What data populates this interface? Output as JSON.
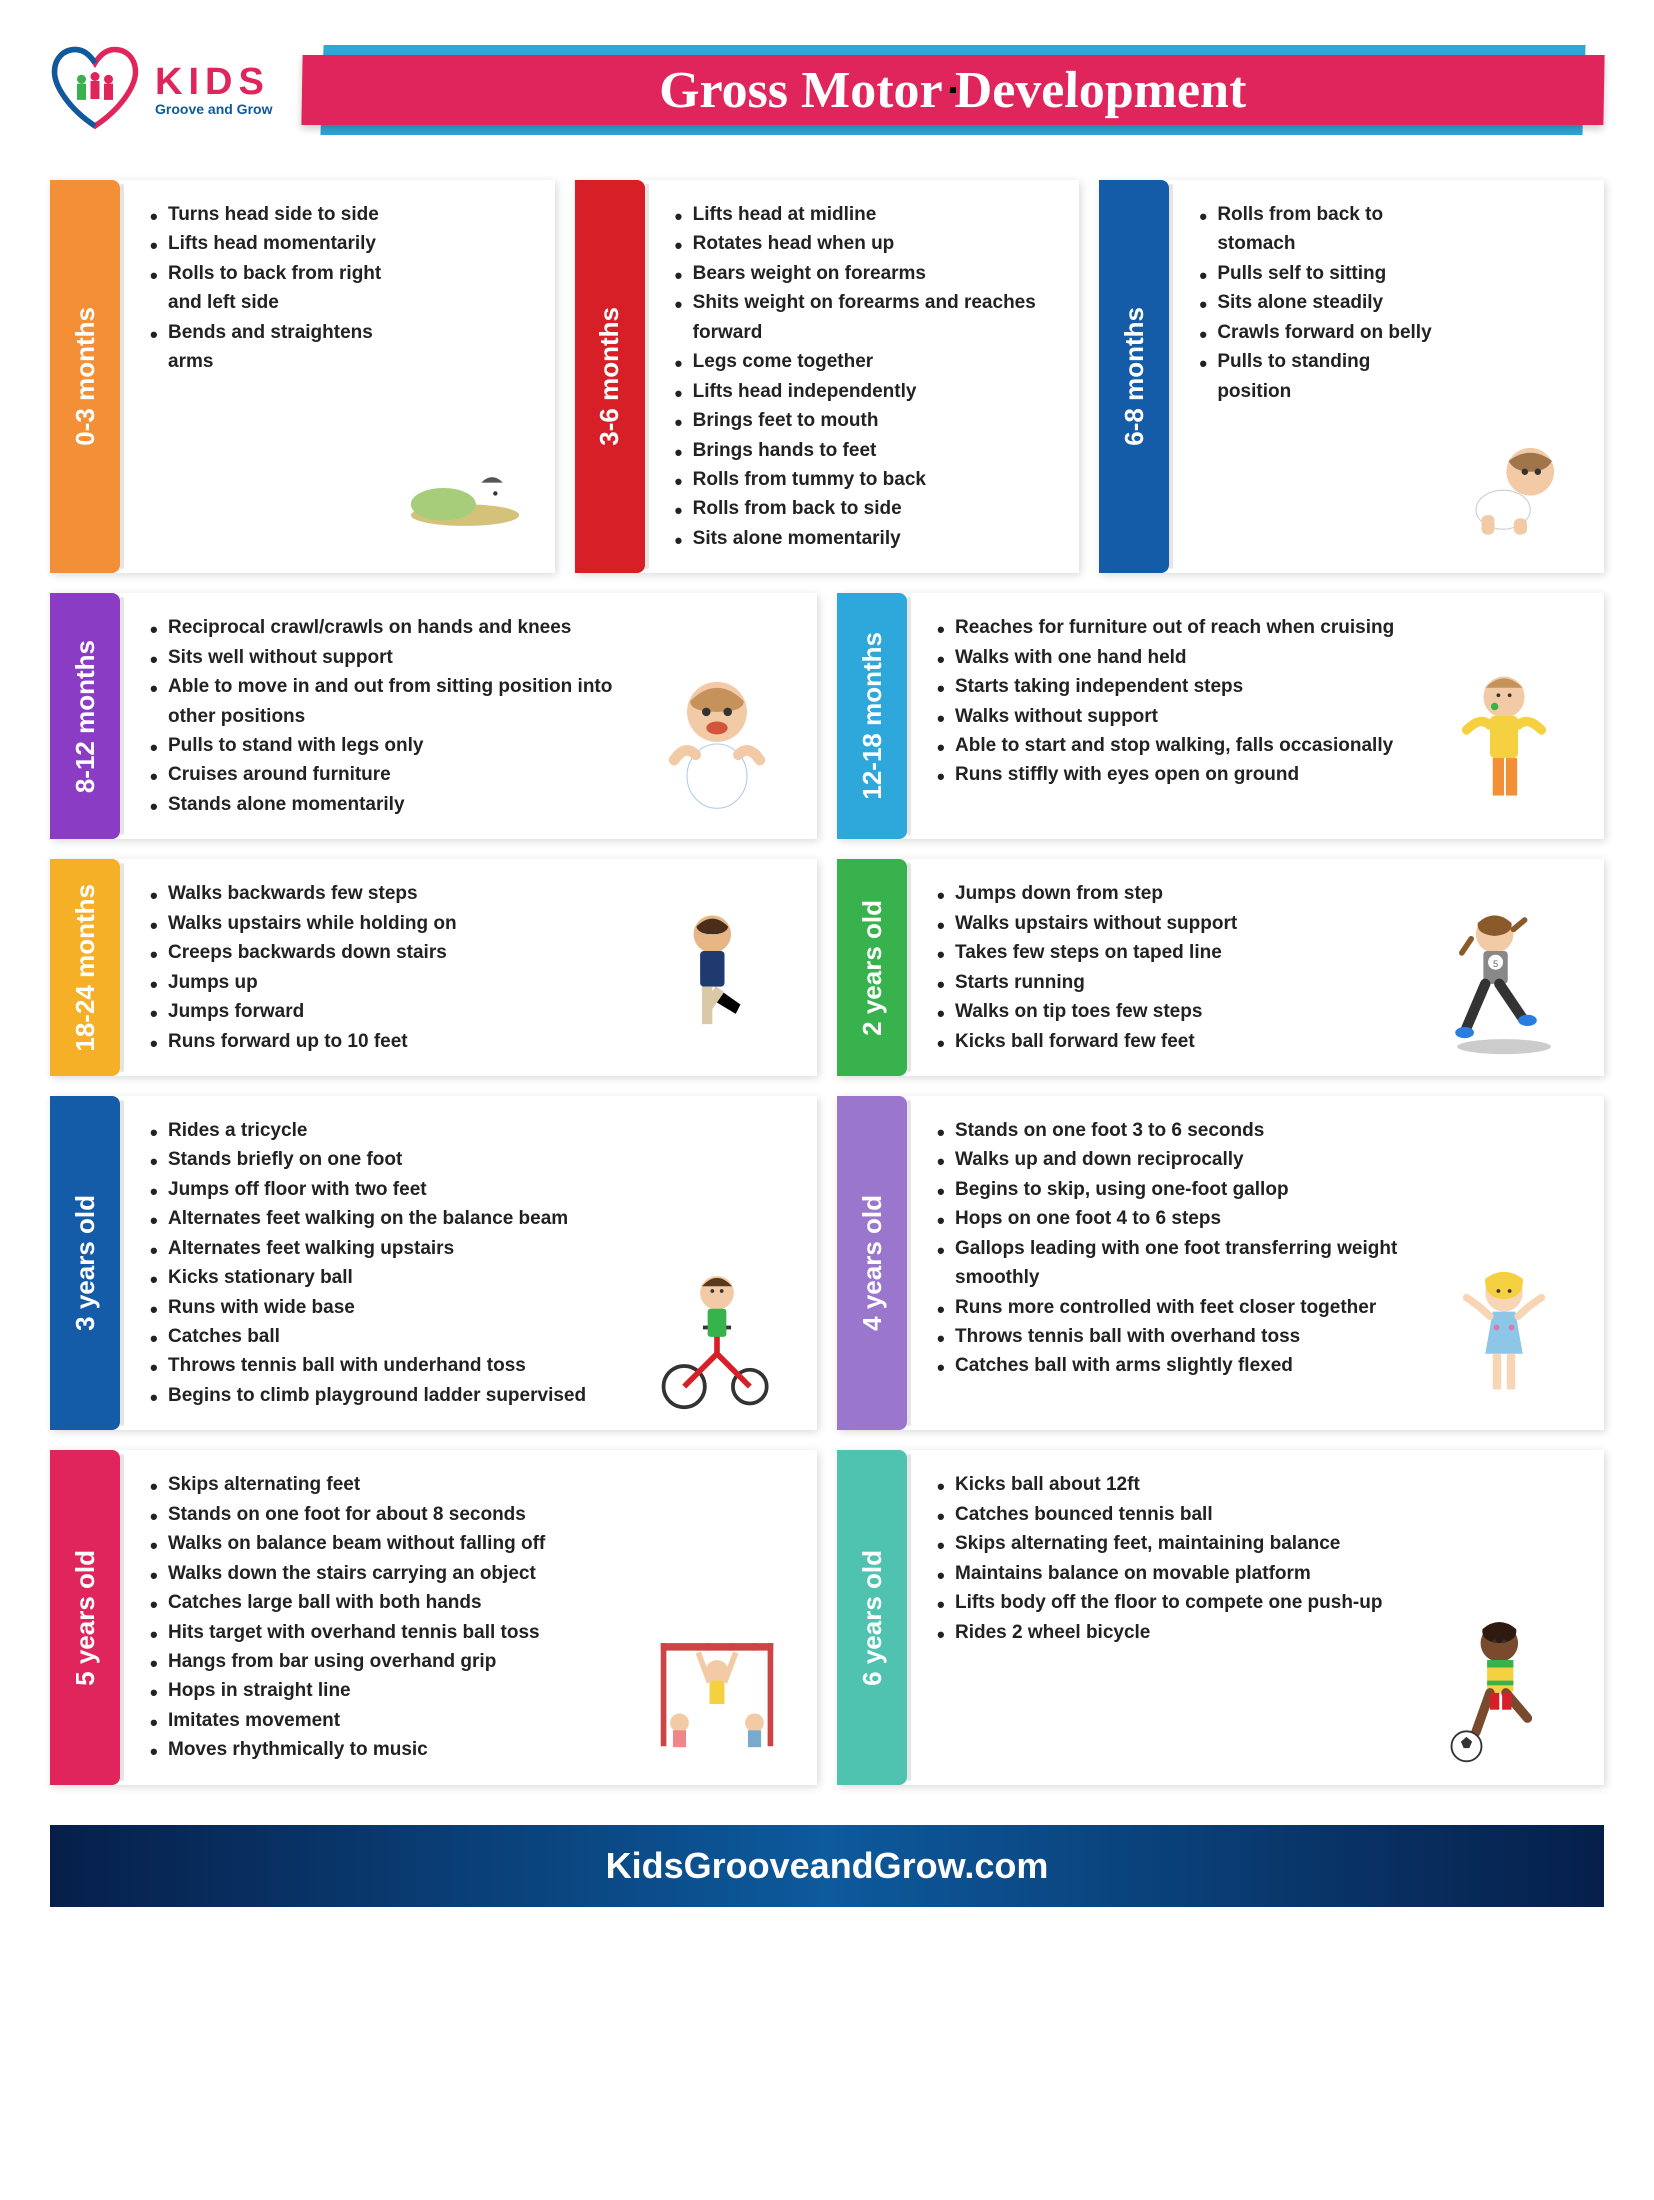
{
  "logo": {
    "kids": "KIDS",
    "sub": "Groove and Grow"
  },
  "title": "Gross Motor Development",
  "footer": "KidsGrooveandGrow.com",
  "colors": {
    "orange": "#f39037",
    "red": "#d71f28",
    "navy": "#145ca8",
    "purple": "#8b3cc4",
    "cyan": "#2ea7db",
    "yellow": "#f5b027",
    "green": "#37b24d",
    "violet": "#9a77cc",
    "pink": "#e0245c",
    "teal": "#4fc3b0"
  },
  "sections": {
    "s0": {
      "label": "0-3 months",
      "color": "#f39037",
      "items": [
        "Turns head side to side",
        "Lifts head momentarily",
        "Rolls to back from right and left side",
        "Bends and straightens arms"
      ]
    },
    "s1": {
      "label": "3-6 months",
      "color": "#d71f28",
      "items": [
        "Lifts head at midline",
        "Rotates head when up",
        "Bears weight on forearms",
        "Shits weight on forearms and reaches forward",
        "Legs come together",
        "Lifts head independently",
        "Brings feet to mouth",
        "Brings hands to feet",
        "Rolls from tummy to back",
        "Rolls from back to side",
        "Sits alone momentarily"
      ]
    },
    "s2": {
      "label": "6-8 months",
      "color": "#145ca8",
      "items": [
        "Rolls from back to stomach",
        "Pulls self to sitting",
        "Sits alone steadily",
        "Crawls forward on belly",
        "Pulls to standing position"
      ]
    },
    "s3": {
      "label": "8-12 months",
      "color": "#8b3cc4",
      "items": [
        "Reciprocal crawl/crawls on hands and knees",
        "Sits well without support",
        "Able to move in and out from sitting position into other positions",
        "Pulls to stand with legs only",
        "Cruises around furniture",
        "Stands alone momentarily"
      ]
    },
    "s4": {
      "label": "12-18 months",
      "color": "#2ea7db",
      "items": [
        "Reaches for furniture out of reach when cruising",
        "Walks with one hand held",
        "Starts taking independent steps",
        "Walks without support",
        "Able to start and stop walking, falls occasionally",
        "Runs stiffly with eyes open on ground"
      ]
    },
    "s5": {
      "label": "18-24 months",
      "color": "#f5b027",
      "items": [
        "Walks backwards few steps",
        "Walks upstairs while holding on",
        "Creeps backwards down stairs",
        "Jumps up",
        "Jumps forward",
        "Runs forward up to 10 feet"
      ]
    },
    "s6": {
      "label": "2 years old",
      "color": "#37b24d",
      "items": [
        "Jumps down from step",
        "Walks upstairs without support",
        "Takes few steps on taped line",
        "Starts running",
        "Walks on tip toes few steps",
        "Kicks ball forward few feet"
      ]
    },
    "s7": {
      "label": "3 years old",
      "color": "#145ca8",
      "items": [
        "Rides a tricycle",
        "Stands briefly on one foot",
        "Jumps off floor with two feet",
        "Alternates feet walking on the balance beam",
        "Alternates feet walking upstairs",
        "Kicks stationary ball",
        "Runs with wide base",
        "Catches ball",
        "Throws tennis ball with underhand toss",
        "Begins to climb playground ladder supervised"
      ]
    },
    "s8": {
      "label": "4 years old",
      "color": "#9a77cc",
      "items": [
        "Stands on one foot 3 to 6 seconds",
        "Walks up and down reciprocally",
        "Begins to skip, using one-foot gallop",
        "Hops on one foot 4 to 6 steps",
        "Gallops leading with one foot transferring weight smoothly",
        "Runs more controlled with feet closer together",
        "Throws tennis ball with overhand toss",
        "Catches ball with arms slightly flexed"
      ]
    },
    "s9": {
      "label": "5 years old",
      "color": "#e0245c",
      "items": [
        "Skips alternating feet",
        "Stands on one foot for about 8 seconds",
        "Walks on balance beam without falling off",
        "Walks down the stairs carrying an object",
        "Catches large ball with both hands",
        "Hits target with overhand tennis ball toss",
        "Hangs from bar using overhand grip",
        "Hops in straight line",
        "Imitates movement",
        "Moves rhythmically to music"
      ]
    },
    "s10": {
      "label": "6 years old",
      "color": "#4fc3b0",
      "items": [
        "Kicks ball about 12ft",
        "Catches bounced tennis ball",
        "Skips alternating feet, maintaining balance",
        "Maintains balance on movable platform",
        "Lifts body off the floor to compete one push-up",
        "Rides 2 wheel bicycle"
      ]
    }
  }
}
